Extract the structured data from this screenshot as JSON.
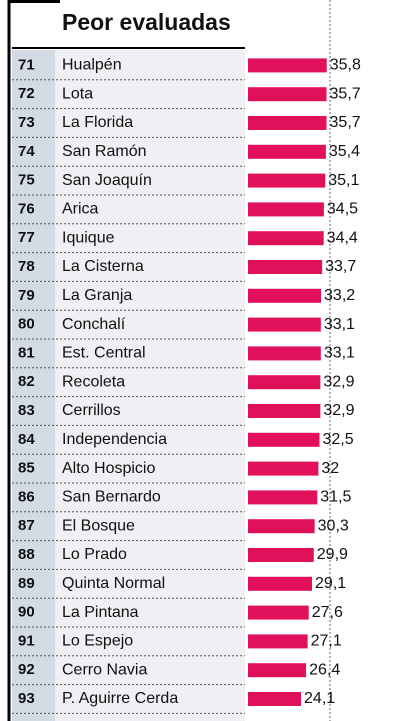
{
  "chart_data": {
    "type": "bar",
    "orientation": "horizontal",
    "title": "Peor evaluadas",
    "ranks": [
      71,
      72,
      73,
      74,
      75,
      76,
      77,
      78,
      79,
      80,
      81,
      82,
      83,
      84,
      85,
      86,
      87,
      88,
      89,
      90,
      91,
      92,
      93
    ],
    "categories": [
      "Hualpén",
      "Lota",
      "La Florida",
      "San Ramón",
      "San Joaquín",
      "Arica",
      "Iquique",
      "La Cisterna",
      "La Granja",
      "Conchalí",
      "Est. Central",
      "Recoleta",
      "Cerrillos",
      "Independencia",
      "Alto Hospicio",
      "San Bernardo",
      "El Bosque",
      "Lo Prado",
      "Quinta Normal",
      "La Pintana",
      "Lo Espejo",
      "Cerro Navia",
      "P. Aguirre Cerda"
    ],
    "values": [
      35.8,
      35.7,
      35.7,
      35.4,
      35.1,
      34.5,
      34.4,
      33.7,
      33.2,
      33.1,
      33.1,
      32.9,
      32.9,
      32.5,
      32,
      31.5,
      30.3,
      29.9,
      29.1,
      27.6,
      27.1,
      26.4,
      24.1
    ],
    "value_labels": [
      "35,8",
      "35,7",
      "35,7",
      "35,4",
      "35,1",
      "34,5",
      "34,4",
      "33,7",
      "33,2",
      "33,1",
      "33,1",
      "32,9",
      "32,9",
      "32,5",
      "32",
      "31,5",
      "30,3",
      "29,9",
      "29,1",
      "27,6",
      "27,1",
      "26,4",
      "24,1"
    ],
    "color": "#e0105a"
  }
}
